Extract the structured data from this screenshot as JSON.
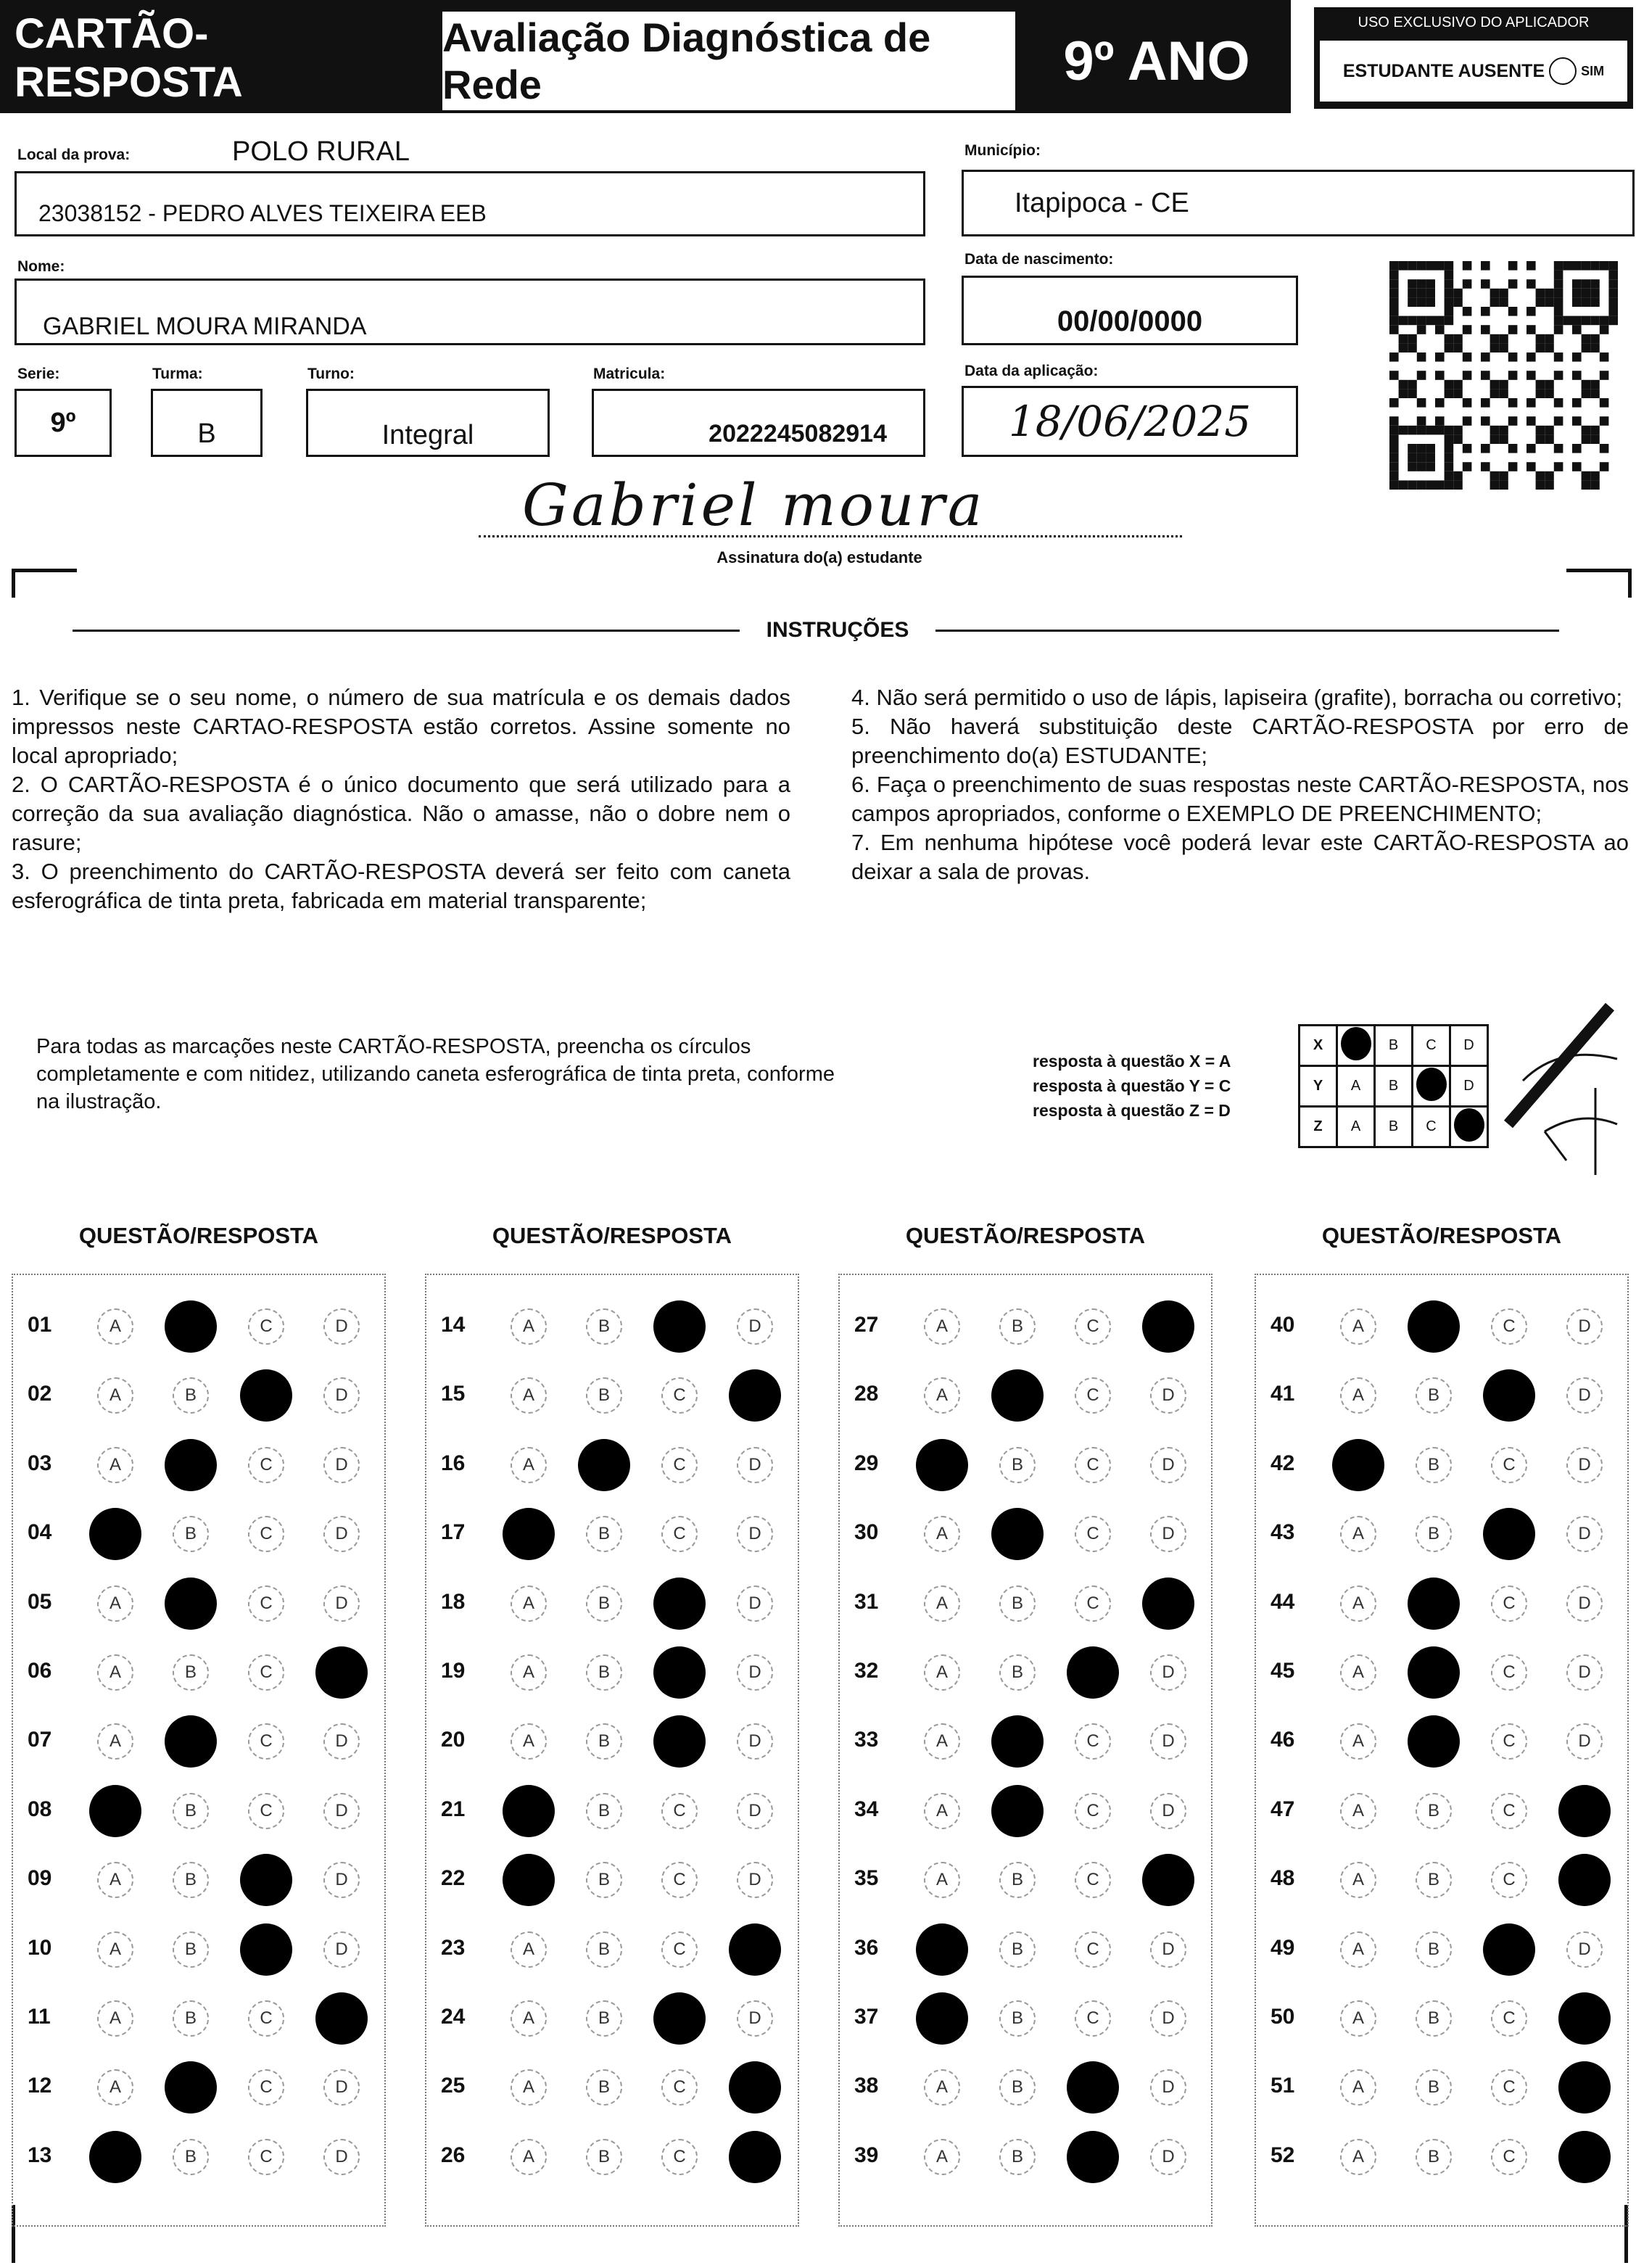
{
  "header": {
    "card_title": "CARTÃO-RESPOSTA",
    "exam_title": "Avaliação Diagnóstica de Rede",
    "grade": "9º ANO",
    "applicator_title": "USO EXCLUSIVO DO APLICADOR",
    "absent_label": "ESTUDANTE AUSENTE",
    "absent_option": "SIM"
  },
  "fields": {
    "local_label": "Local da prova:",
    "local_value": "POLO RURAL",
    "school": "23038152 - PEDRO ALVES TEIXEIRA EEB",
    "municipio_label": "Município:",
    "municipio": "Itapipoca - CE",
    "nome_label": "Nome:",
    "nome": "GABRIEL MOURA MIRANDA",
    "nascimento_label": "Data de nascimento:",
    "nascimento": "00/00/0000",
    "serie_label": "Serie:",
    "serie": "9º",
    "turma_label": "Turma:",
    "turma": "B",
    "turno_label": "Turno:",
    "turno": "Integral",
    "matricula_label": "Matricula:",
    "matricula": "2022245082914",
    "aplicacao_label": "Data da aplicação:",
    "aplicacao": "18/06/2025",
    "signature": "Gabriel moura",
    "signature_label": "Assinatura do(a) estudante"
  },
  "instructions": {
    "title": "INSTRUÇÕES",
    "left": [
      "1. Verifique se o seu nome, o número de sua matrícula e os demais dados impressos neste CARTAO-RESPOSTA estão corretos. Assine somente no local apropriado;",
      "2. O CARTÃO-RESPOSTA é o único documento que será utilizado para a correção da sua avaliação diagnóstica. Não o amasse, não o dobre nem o rasure;",
      "3. O preenchimento do CARTÃO-RESPOSTA deverá ser feito com caneta esferográfica de tinta preta, fabricada em material transparente;"
    ],
    "right": [
      "4. Não será permitido o uso de lápis, lapiseira (grafite), borracha ou corretivo;",
      "5. Não haverá substituição deste CARTÃO-RESPOSTA por erro de preenchimento do(a) ESTUDANTE;",
      "6. Faça o preenchimento de suas respostas neste CARTÃO-RESPOSTA, nos campos apropriados, conforme o EXEMPLO DE PREENCHIMENTO;",
      "7. Em nenhuma hipótese você poderá levar este CARTÃO-RESPOSTA ao deixar a sala de provas."
    ]
  },
  "example": {
    "text": "Para todas as marcações neste CARTÃO-RESPOSTA, preencha os círculos completamente e com nitidez, utilizando caneta esferográfica de tinta preta, conforme na ilustração.",
    "legend": [
      "resposta à questão X = A",
      "resposta à questão Y = C",
      "resposta à questão Z = D"
    ],
    "rows": [
      {
        "q": "X",
        "answer": "A"
      },
      {
        "q": "Y",
        "answer": "C"
      },
      {
        "q": "Z",
        "answer": "D"
      }
    ]
  },
  "options": [
    "A",
    "B",
    "C",
    "D"
  ],
  "column_title": "QUESTÃO/RESPOSTA",
  "columns": [
    [
      [
        "01",
        "B"
      ],
      [
        "02",
        "C"
      ],
      [
        "03",
        "B"
      ],
      [
        "04",
        "A"
      ],
      [
        "05",
        "B"
      ],
      [
        "06",
        "D"
      ],
      [
        "07",
        "B"
      ],
      [
        "08",
        "A"
      ],
      [
        "09",
        "C"
      ],
      [
        "10",
        "C"
      ],
      [
        "11",
        "D"
      ],
      [
        "12",
        "B"
      ],
      [
        "13",
        "A"
      ]
    ],
    [
      [
        "14",
        "C"
      ],
      [
        "15",
        "D"
      ],
      [
        "16",
        "B"
      ],
      [
        "17",
        "A"
      ],
      [
        "18",
        "C"
      ],
      [
        "19",
        "C"
      ],
      [
        "20",
        "C"
      ],
      [
        "21",
        "A"
      ],
      [
        "22",
        "A"
      ],
      [
        "23",
        "D"
      ],
      [
        "24",
        "C"
      ],
      [
        "25",
        "D"
      ],
      [
        "26",
        "D"
      ]
    ],
    [
      [
        "27",
        "D"
      ],
      [
        "28",
        "B"
      ],
      [
        "29",
        "A"
      ],
      [
        "30",
        "B"
      ],
      [
        "31",
        "D"
      ],
      [
        "32",
        "C"
      ],
      [
        "33",
        "B"
      ],
      [
        "34",
        "B"
      ],
      [
        "35",
        "D"
      ],
      [
        "36",
        "A"
      ],
      [
        "37",
        "A"
      ],
      [
        "38",
        "C"
      ],
      [
        "39",
        "C"
      ]
    ],
    [
      [
        "40",
        "B"
      ],
      [
        "41",
        "C"
      ],
      [
        "42",
        "A"
      ],
      [
        "43",
        "C"
      ],
      [
        "44",
        "B"
      ],
      [
        "45",
        "B"
      ],
      [
        "46",
        "B"
      ],
      [
        "47",
        "D"
      ],
      [
        "48",
        "D"
      ],
      [
        "49",
        "C"
      ],
      [
        "50",
        "D"
      ],
      [
        "51",
        "D"
      ],
      [
        "52",
        "D"
      ]
    ]
  ]
}
